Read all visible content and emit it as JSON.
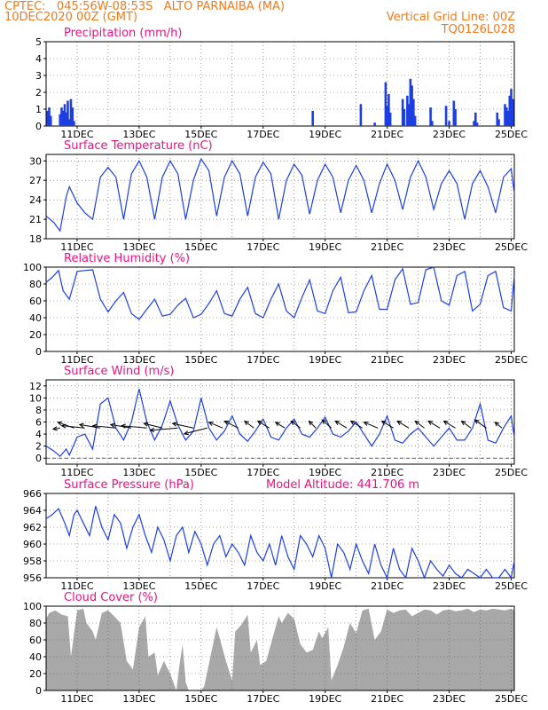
{
  "header": {
    "station": "CPTEC:   045:56W-08:53S   ALTO PARNAIBA (MA)",
    "date": "10DEC2020 00Z (GMT)",
    "grid_note": "Vertical Grid Line: 00Z",
    "code": "TQ0126L028"
  },
  "colors": {
    "header": "#ee7a1b",
    "title": "#e8127f",
    "series": "#1d3fe0",
    "cloud": "#a8a8a8"
  },
  "chart_data": [
    {
      "type": "bar",
      "title": "Precipitation (mm/h)",
      "x_ticks": [
        "11DEC",
        "13DEC",
        "15DEC",
        "17DEC",
        "19DEC",
        "21DEC",
        "23DEC",
        "25DEC"
      ],
      "ylim": [
        0,
        5
      ],
      "y_ticks": [
        0,
        1,
        2,
        3,
        4,
        5
      ],
      "x_range_days": [
        10,
        25.1
      ],
      "values": [
        [
          10.05,
          0.9
        ],
        [
          10.1,
          1.1
        ],
        [
          10.15,
          0.6
        ],
        [
          10.45,
          0.7
        ],
        [
          10.5,
          1.1
        ],
        [
          10.55,
          0.9
        ],
        [
          10.6,
          1.3
        ],
        [
          10.65,
          0.8
        ],
        [
          10.7,
          1.5
        ],
        [
          10.75,
          0.4
        ],
        [
          10.8,
          1.6
        ],
        [
          10.85,
          1.1
        ],
        [
          10.9,
          0.3
        ],
        [
          18.6,
          0.9
        ],
        [
          20.15,
          1.3
        ],
        [
          20.6,
          0.2
        ],
        [
          20.95,
          2.6
        ],
        [
          21.0,
          1.2
        ],
        [
          21.05,
          1.9
        ],
        [
          21.1,
          0.8
        ],
        [
          21.5,
          1.6
        ],
        [
          21.55,
          1.0
        ],
        [
          21.65,
          1.8
        ],
        [
          21.7,
          1.3
        ],
        [
          21.75,
          2.8
        ],
        [
          21.8,
          2.4
        ],
        [
          21.85,
          1.6
        ],
        [
          21.9,
          0.6
        ],
        [
          22.4,
          1.1
        ],
        [
          22.45,
          0.3
        ],
        [
          22.9,
          1.2
        ],
        [
          23.0,
          0.3
        ],
        [
          23.15,
          1.5
        ],
        [
          23.2,
          1.0
        ],
        [
          23.8,
          0.3
        ],
        [
          23.85,
          0.8
        ],
        [
          23.9,
          0.2
        ],
        [
          24.55,
          0.8
        ],
        [
          24.6,
          0.4
        ],
        [
          24.8,
          1.3
        ],
        [
          24.85,
          1.1
        ],
        [
          24.9,
          0.9
        ],
        [
          24.95,
          1.8
        ],
        [
          25.0,
          2.2
        ],
        [
          25.05,
          1.6
        ]
      ]
    },
    {
      "type": "line",
      "title": "Surface Temperature (nC)",
      "x_ticks": [
        "11DEC",
        "13DEC",
        "15DEC",
        "17DEC",
        "19DEC",
        "21DEC",
        "23DEC",
        "25DEC"
      ],
      "ylim": [
        18,
        31
      ],
      "y_ticks": [
        18,
        21,
        24,
        27,
        30
      ],
      "x_range_days": [
        10,
        25.1
      ],
      "x": [
        10.0,
        10.25,
        10.45,
        10.65,
        10.75,
        11.0,
        11.25,
        11.5,
        11.75,
        12.0,
        12.25,
        12.5,
        12.75,
        13.0,
        13.25,
        13.5,
        13.75,
        14.0,
        14.25,
        14.5,
        14.75,
        15.0,
        15.25,
        15.5,
        15.75,
        16.0,
        16.25,
        16.5,
        16.75,
        17.0,
        17.25,
        17.5,
        17.75,
        18.0,
        18.25,
        18.5,
        18.75,
        19.0,
        19.25,
        19.5,
        19.75,
        20.0,
        20.25,
        20.5,
        20.75,
        21.0,
        21.25,
        21.5,
        21.75,
        22.0,
        22.25,
        22.5,
        22.75,
        23.0,
        23.25,
        23.5,
        23.75,
        24.0,
        24.25,
        24.5,
        24.75,
        25.0,
        25.1
      ],
      "values": [
        21.5,
        20.5,
        19.2,
        24.5,
        26.0,
        23.5,
        22.0,
        21.0,
        27.5,
        29.0,
        27.5,
        21.0,
        28.0,
        30.0,
        27.5,
        21.0,
        27.5,
        30.0,
        28.0,
        21.0,
        27.0,
        30.3,
        28.5,
        21.5,
        27.5,
        30.0,
        28.0,
        21.5,
        27.5,
        29.8,
        28.0,
        21.0,
        27.0,
        29.5,
        27.8,
        21.8,
        27.0,
        29.5,
        27.5,
        22.0,
        27.0,
        29.3,
        27.0,
        22.0,
        26.5,
        29.5,
        27.0,
        22.5,
        27.5,
        30.0,
        27.5,
        22.5,
        26.5,
        28.5,
        26.5,
        21.0,
        26.5,
        28.5,
        26.0,
        22.0,
        27.5,
        28.8,
        25.0
      ]
    },
    {
      "type": "line",
      "title": "Relative Humidity (%)",
      "x_ticks": [
        "11DEC",
        "13DEC",
        "15DEC",
        "17DEC",
        "19DEC",
        "21DEC",
        "23DEC",
        "25DEC"
      ],
      "ylim": [
        0,
        100
      ],
      "y_ticks": [
        0,
        20,
        40,
        60,
        80,
        100
      ],
      "x_range_days": [
        10,
        25.1
      ],
      "x": [
        10.0,
        10.2,
        10.4,
        10.55,
        10.75,
        11.0,
        11.25,
        11.5,
        11.75,
        12.0,
        12.25,
        12.5,
        12.75,
        13.0,
        13.25,
        13.5,
        13.75,
        14.0,
        14.25,
        14.5,
        14.75,
        15.0,
        15.25,
        15.5,
        15.75,
        16.0,
        16.25,
        16.5,
        16.75,
        17.0,
        17.25,
        17.5,
        17.75,
        18.0,
        18.25,
        18.5,
        18.75,
        19.0,
        19.25,
        19.5,
        19.75,
        20.0,
        20.25,
        20.5,
        20.75,
        21.0,
        21.25,
        21.5,
        21.75,
        22.0,
        22.25,
        22.5,
        22.75,
        23.0,
        23.25,
        23.5,
        23.75,
        24.0,
        24.25,
        24.5,
        24.75,
        25.0,
        25.1
      ],
      "values": [
        82,
        88,
        96,
        72,
        62,
        95,
        96,
        97,
        62,
        47,
        60,
        70,
        45,
        38,
        50,
        62,
        42,
        44,
        55,
        63,
        40,
        44,
        57,
        72,
        45,
        42,
        62,
        76,
        45,
        40,
        62,
        80,
        48,
        40,
        64,
        85,
        48,
        45,
        72,
        88,
        46,
        47,
        72,
        90,
        50,
        50,
        85,
        98,
        56,
        58,
        97,
        100,
        60,
        55,
        90,
        95,
        48,
        56,
        90,
        95,
        52,
        48,
        90
      ]
    },
    {
      "type": "line",
      "title": "Surface Wind (m/s)",
      "x_ticks": [
        "11DEC",
        "13DEC",
        "15DEC",
        "17DEC",
        "19DEC",
        "21DEC",
        "23DEC",
        "25DEC"
      ],
      "ylim": [
        -1,
        13
      ],
      "y_ticks": [
        0,
        2,
        4,
        6,
        8,
        10,
        12
      ],
      "x_range_days": [
        10,
        25.1
      ],
      "x": [
        10.0,
        10.25,
        10.45,
        10.65,
        10.75,
        11.0,
        11.25,
        11.5,
        11.75,
        12.0,
        12.25,
        12.5,
        12.75,
        13.0,
        13.25,
        13.5,
        13.75,
        14.0,
        14.25,
        14.5,
        14.75,
        15.0,
        15.25,
        15.5,
        15.75,
        16.0,
        16.25,
        16.5,
        16.75,
        17.0,
        17.25,
        17.5,
        17.75,
        18.0,
        18.25,
        18.5,
        18.75,
        19.0,
        19.25,
        19.5,
        19.75,
        20.0,
        20.25,
        20.5,
        20.75,
        21.0,
        21.25,
        21.5,
        21.75,
        22.0,
        22.25,
        22.5,
        22.75,
        23.0,
        23.25,
        23.5,
        23.75,
        24.0,
        24.25,
        24.5,
        24.75,
        25.0,
        25.1
      ],
      "values": [
        2.0,
        1.2,
        0.3,
        1.5,
        0.5,
        3.5,
        4.0,
        1.5,
        9.0,
        10.0,
        5.0,
        3.0,
        6.0,
        11.5,
        6.0,
        3.0,
        5.5,
        9.5,
        5.5,
        3.0,
        4.5,
        10.0,
        5.0,
        3.0,
        4.5,
        7.0,
        4.0,
        2.8,
        4.5,
        6.5,
        3.5,
        3.0,
        5.0,
        6.5,
        4.0,
        3.5,
        5.0,
        6.8,
        4.0,
        3.5,
        4.5,
        6.0,
        4.0,
        2.0,
        4.0,
        7.0,
        3.0,
        2.5,
        4.0,
        5.0,
        3.5,
        2.0,
        3.5,
        5.0,
        3.0,
        3.0,
        5.0,
        9.0,
        3.0,
        2.5,
        5.0,
        7.0,
        3.5
      ]
    },
    {
      "type": "line",
      "title": "Surface Pressure (hPa)",
      "annotation": "Model Altitude: 441.706  m",
      "x_ticks": [
        "11DEC",
        "13DEC",
        "15DEC",
        "17DEC",
        "19DEC",
        "21DEC",
        "23DEC",
        "25DEC"
      ],
      "ylim": [
        956,
        966
      ],
      "y_ticks": [
        956,
        958,
        960,
        962,
        964,
        966
      ],
      "x_range_days": [
        10,
        25.1
      ],
      "x": [
        10.0,
        10.2,
        10.4,
        10.6,
        10.75,
        10.9,
        11.0,
        11.2,
        11.4,
        11.6,
        11.8,
        12.0,
        12.2,
        12.4,
        12.6,
        12.8,
        13.0,
        13.2,
        13.4,
        13.6,
        13.8,
        14.0,
        14.2,
        14.4,
        14.6,
        14.8,
        15.0,
        15.2,
        15.4,
        15.6,
        15.8,
        16.0,
        16.2,
        16.4,
        16.6,
        16.8,
        17.0,
        17.2,
        17.4,
        17.6,
        17.8,
        18.0,
        18.2,
        18.4,
        18.6,
        18.8,
        19.0,
        19.2,
        19.4,
        19.6,
        19.8,
        20.0,
        20.2,
        20.4,
        20.6,
        20.8,
        21.0,
        21.2,
        21.4,
        21.6,
        21.8,
        22.0,
        22.2,
        22.4,
        22.6,
        22.8,
        23.0,
        23.2,
        23.4,
        23.6,
        23.8,
        24.0,
        24.2,
        24.4,
        24.6,
        24.8,
        25.0,
        25.1
      ],
      "values": [
        963.0,
        963.5,
        964.2,
        962.5,
        961.0,
        963.5,
        964.0,
        962.5,
        961.0,
        964.5,
        962.0,
        960.5,
        963.5,
        962.5,
        959.5,
        962.0,
        963.5,
        961.0,
        959.0,
        962.0,
        960.5,
        958.0,
        961.0,
        962.0,
        959.0,
        961.5,
        960.0,
        957.5,
        960.0,
        961.0,
        958.5,
        960.0,
        959.0,
        957.5,
        961.0,
        959.0,
        958.0,
        960.0,
        957.5,
        961.0,
        958.5,
        957.0,
        961.0,
        960.0,
        958.5,
        961.0,
        959.5,
        956.0,
        960.0,
        959.0,
        957.0,
        960.0,
        958.0,
        956.5,
        960.0,
        957.5,
        956.0,
        959.5,
        957.0,
        956.0,
        959.5,
        958.0,
        956.0,
        958.0,
        957.0,
        956.2,
        957.5,
        956.5,
        955.8,
        957.0,
        956.5,
        955.8,
        957.0,
        956.0,
        955.8,
        957.0,
        956.0,
        958.0
      ]
    },
    {
      "type": "area",
      "title": "Cloud Cover (%)",
      "x_ticks": [
        "11DEC",
        "13DEC",
        "15DEC",
        "17DEC",
        "19DEC",
        "21DEC",
        "23DEC",
        "25DEC"
      ],
      "ylim": [
        0,
        100
      ],
      "y_ticks": [
        0,
        20,
        40,
        60,
        80,
        100
      ],
      "x_range_days": [
        10,
        25.1
      ],
      "x": [
        10.0,
        10.1,
        10.3,
        10.5,
        10.7,
        10.8,
        11.0,
        11.2,
        11.3,
        11.5,
        11.6,
        11.8,
        12.0,
        12.2,
        12.4,
        12.6,
        12.8,
        13.0,
        13.2,
        13.3,
        13.5,
        13.6,
        13.8,
        14.0,
        14.2,
        14.3,
        14.4,
        14.5,
        14.6,
        14.8,
        15.0,
        15.1,
        15.3,
        15.5,
        15.6,
        15.8,
        16.0,
        16.1,
        16.3,
        16.5,
        16.6,
        16.8,
        16.9,
        17.1,
        17.3,
        17.5,
        17.6,
        17.8,
        18.0,
        18.2,
        18.4,
        18.6,
        18.8,
        18.9,
        19.1,
        19.2,
        19.4,
        19.6,
        19.8,
        20.0,
        20.2,
        20.4,
        20.6,
        20.8,
        21.0,
        21.2,
        21.4,
        21.6,
        21.8,
        22.0,
        22.2,
        22.4,
        22.6,
        22.8,
        23.0,
        23.2,
        23.4,
        23.6,
        23.8,
        24.0,
        24.2,
        24.4,
        24.6,
        24.8,
        25.0,
        25.1
      ],
      "values": [
        85,
        92,
        95,
        90,
        88,
        40,
        95,
        97,
        80,
        70,
        60,
        92,
        95,
        88,
        80,
        35,
        25,
        75,
        88,
        40,
        45,
        18,
        35,
        20,
        0,
        30,
        55,
        10,
        0,
        0,
        0,
        5,
        40,
        75,
        62,
        35,
        12,
        70,
        78,
        90,
        45,
        60,
        30,
        35,
        62,
        88,
        80,
        92,
        85,
        55,
        45,
        48,
        70,
        62,
        75,
        12,
        30,
        52,
        80,
        68,
        95,
        97,
        60,
        70,
        96,
        92,
        95,
        96,
        88,
        92,
        96,
        95,
        90,
        95,
        96,
        94,
        95,
        97,
        93,
        96,
        95,
        97,
        96,
        95,
        97,
        95
      ]
    }
  ],
  "wind_arrows": {
    "units": "m/s (direction shown as arrows)",
    "x": [
      10.45,
      10.9,
      11.25,
      11.75,
      12.25,
      12.75,
      13.25,
      13.75,
      14.25,
      14.75,
      15.2,
      15.7,
      16.2,
      16.7,
      17.2,
      17.7,
      18.2,
      18.7,
      19.2,
      19.7,
      20.2,
      20.7,
      21.2,
      21.7,
      22.2,
      22.7,
      23.2,
      23.7,
      24.2,
      24.7
    ],
    "dx": [
      -0.3,
      -0.7,
      -1.0,
      -0.9,
      -1.0,
      -0.9,
      -1.1,
      -0.8,
      -1.2,
      -0.9,
      -1.0,
      -0.6,
      -0.6,
      -0.4,
      -0.5,
      -0.4,
      -0.4,
      -0.3,
      -0.4,
      -0.5,
      -0.5,
      -0.6,
      -0.5,
      -0.5,
      -0.4,
      -0.5,
      -0.5,
      -0.4,
      -0.5,
      -0.3
    ],
    "dy": [
      0.1,
      -0.5,
      -0.2,
      -0.3,
      -0.2,
      -0.3,
      -0.2,
      -0.4,
      0.2,
      -0.4,
      0.5,
      -0.5,
      -0.6,
      -0.6,
      -0.6,
      -0.5,
      -0.6,
      -0.6,
      -0.7,
      -0.6,
      -0.6,
      -0.5,
      -0.6,
      -0.6,
      -0.6,
      -0.6,
      -0.6,
      -0.6,
      -0.7,
      -0.5
    ]
  }
}
